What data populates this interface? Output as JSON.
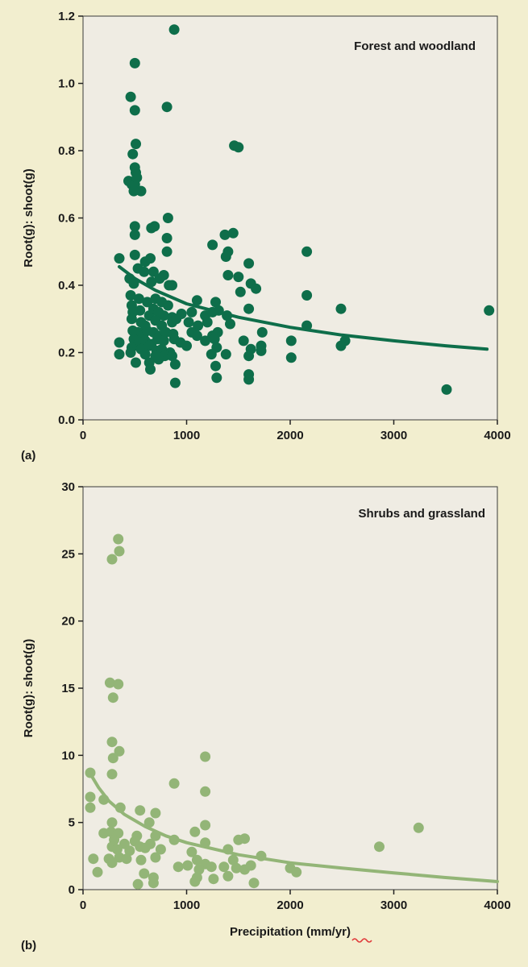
{
  "colors": {
    "page_background": "#f2eecf",
    "plot_background": "#efece3",
    "forest_color": "#0e6e4a",
    "shrub_color": "#93b577",
    "text": "#1a1a1a",
    "underline_squiggle": "#e03c3c"
  },
  "chart_data": [
    {
      "type": "scatter",
      "panel_label": "(a)",
      "title": "Forest and woodland",
      "xlabel": "",
      "ylabel": "Root(g): shoot(g)",
      "xlim": [
        0,
        4000
      ],
      "ylim": [
        0,
        1.2
      ],
      "xticks": [
        "0",
        "1000",
        "2000",
        "3000",
        "4000"
      ],
      "xtick_values": [
        0,
        1000,
        2000,
        3000,
        4000
      ],
      "yticks": [
        "0.0",
        "0.2",
        "0.4",
        "0.6",
        "0.8",
        "1.0",
        "1.2"
      ],
      "ytick_values": [
        0,
        0.2,
        0.4,
        0.6,
        0.8,
        1.0,
        1.2
      ],
      "grid": false,
      "legend": "none",
      "trend_curve": {
        "x": [
          350,
          500,
          700,
          1000,
          1500,
          2000,
          2500,
          3000,
          3500,
          3900
        ],
        "y": [
          0.455,
          0.42,
          0.385,
          0.345,
          0.305,
          0.275,
          0.252,
          0.235,
          0.22,
          0.21
        ]
      },
      "points": [
        [
          880,
          1.16
        ],
        [
          500,
          1.06
        ],
        [
          460,
          0.96
        ],
        [
          500,
          0.92
        ],
        [
          810,
          0.93
        ],
        [
          1460,
          0.815
        ],
        [
          1500,
          0.81
        ],
        [
          480,
          0.79
        ],
        [
          510,
          0.82
        ],
        [
          500,
          0.75
        ],
        [
          510,
          0.735
        ],
        [
          440,
          0.71
        ],
        [
          470,
          0.7
        ],
        [
          500,
          0.7
        ],
        [
          520,
          0.72
        ],
        [
          560,
          0.68
        ],
        [
          490,
          0.68
        ],
        [
          820,
          0.6
        ],
        [
          500,
          0.575
        ],
        [
          660,
          0.57
        ],
        [
          690,
          0.575
        ],
        [
          500,
          0.55
        ],
        [
          810,
          0.54
        ],
        [
          1250,
          0.52
        ],
        [
          1370,
          0.55
        ],
        [
          1450,
          0.555
        ],
        [
          2160,
          0.5
        ],
        [
          350,
          0.48
        ],
        [
          500,
          0.49
        ],
        [
          600,
          0.47
        ],
        [
          650,
          0.48
        ],
        [
          810,
          0.5
        ],
        [
          1400,
          0.5
        ],
        [
          1380,
          0.485
        ],
        [
          530,
          0.45
        ],
        [
          590,
          0.44
        ],
        [
          680,
          0.44
        ],
        [
          780,
          0.43
        ],
        [
          860,
          0.4
        ],
        [
          1600,
          0.465
        ],
        [
          450,
          0.42
        ],
        [
          490,
          0.405
        ],
        [
          660,
          0.41
        ],
        [
          740,
          0.42
        ],
        [
          830,
          0.4
        ],
        [
          1400,
          0.43
        ],
        [
          1500,
          0.425
        ],
        [
          1620,
          0.405
        ],
        [
          1670,
          0.39
        ],
        [
          460,
          0.37
        ],
        [
          540,
          0.36
        ],
        [
          620,
          0.35
        ],
        [
          700,
          0.36
        ],
        [
          760,
          0.35
        ],
        [
          820,
          0.34
        ],
        [
          1100,
          0.355
        ],
        [
          1280,
          0.35
        ],
        [
          1520,
          0.38
        ],
        [
          2160,
          0.37
        ],
        [
          470,
          0.34
        ],
        [
          480,
          0.32
        ],
        [
          550,
          0.325
        ],
        [
          640,
          0.31
        ],
        [
          680,
          0.33
        ],
        [
          730,
          0.32
        ],
        [
          780,
          0.31
        ],
        [
          860,
          0.305
        ],
        [
          950,
          0.315
        ],
        [
          1050,
          0.32
        ],
        [
          1180,
          0.31
        ],
        [
          1250,
          0.32
        ],
        [
          1310,
          0.325
        ],
        [
          1390,
          0.31
        ],
        [
          1600,
          0.33
        ],
        [
          2490,
          0.33
        ],
        [
          3920,
          0.325
        ],
        [
          470,
          0.3
        ],
        [
          560,
          0.29
        ],
        [
          600,
          0.28
        ],
        [
          700,
          0.295
        ],
        [
          760,
          0.28
        ],
        [
          860,
          0.29
        ],
        [
          900,
          0.3
        ],
        [
          1020,
          0.29
        ],
        [
          1110,
          0.28
        ],
        [
          1200,
          0.29
        ],
        [
          1420,
          0.285
        ],
        [
          2160,
          0.28
        ],
        [
          480,
          0.265
        ],
        [
          530,
          0.26
        ],
        [
          580,
          0.25
        ],
        [
          620,
          0.265
        ],
        [
          680,
          0.26
        ],
        [
          740,
          0.25
        ],
        [
          800,
          0.26
        ],
        [
          870,
          0.255
        ],
        [
          1050,
          0.26
        ],
        [
          1100,
          0.25
        ],
        [
          1250,
          0.25
        ],
        [
          1300,
          0.26
        ],
        [
          1730,
          0.26
        ],
        [
          490,
          0.24
        ],
        [
          540,
          0.23
        ],
        [
          600,
          0.235
        ],
        [
          660,
          0.225
        ],
        [
          720,
          0.24
        ],
        [
          780,
          0.235
        ],
        [
          880,
          0.24
        ],
        [
          940,
          0.23
        ],
        [
          1180,
          0.235
        ],
        [
          1270,
          0.24
        ],
        [
          1550,
          0.235
        ],
        [
          2010,
          0.235
        ],
        [
          2530,
          0.235
        ],
        [
          350,
          0.23
        ],
        [
          470,
          0.215
        ],
        [
          560,
          0.21
        ],
        [
          640,
          0.22
        ],
        [
          710,
          0.205
        ],
        [
          760,
          0.21
        ],
        [
          840,
          0.2
        ],
        [
          1000,
          0.22
        ],
        [
          1290,
          0.215
        ],
        [
          1620,
          0.21
        ],
        [
          1720,
          0.22
        ],
        [
          2490,
          0.22
        ],
        [
          350,
          0.195
        ],
        [
          460,
          0.2
        ],
        [
          600,
          0.195
        ],
        [
          700,
          0.19
        ],
        [
          790,
          0.19
        ],
        [
          860,
          0.19
        ],
        [
          1240,
          0.195
        ],
        [
          1380,
          0.195
        ],
        [
          1600,
          0.19
        ],
        [
          1720,
          0.205
        ],
        [
          2010,
          0.185
        ],
        [
          510,
          0.17
        ],
        [
          640,
          0.17
        ],
        [
          730,
          0.18
        ],
        [
          890,
          0.165
        ],
        [
          1280,
          0.16
        ],
        [
          650,
          0.15
        ],
        [
          1600,
          0.135
        ],
        [
          1290,
          0.125
        ],
        [
          1600,
          0.12
        ],
        [
          890,
          0.11
        ],
        [
          3510,
          0.09
        ]
      ]
    },
    {
      "type": "scatter",
      "panel_label": "(b)",
      "title": "Shrubs and grassland",
      "xlabel": "Precipitation (mm/yr)",
      "ylabel": "Root(g): shoot(g)",
      "xlim": [
        0,
        4000
      ],
      "ylim": [
        0,
        30
      ],
      "xticks": [
        "0",
        "1000",
        "2000",
        "3000",
        "4000"
      ],
      "xtick_values": [
        0,
        1000,
        2000,
        3000,
        4000
      ],
      "yticks": [
        "0",
        "5",
        "10",
        "15",
        "20",
        "25",
        "30"
      ],
      "ytick_values": [
        0,
        5,
        10,
        15,
        20,
        25,
        30
      ],
      "grid": false,
      "legend": "none",
      "trend_curve": {
        "x": [
          80,
          150,
          250,
          400,
          600,
          800,
          1000,
          1500,
          2000,
          2500,
          3000,
          3500,
          4000
        ],
        "y": [
          8.5,
          7.6,
          6.6,
          5.6,
          4.7,
          4.0,
          3.5,
          2.6,
          2.0,
          1.6,
          1.25,
          0.9,
          0.6
        ]
      },
      "points": [
        [
          340,
          26.1
        ],
        [
          350,
          25.2
        ],
        [
          280,
          24.6
        ],
        [
          260,
          15.4
        ],
        [
          340,
          15.3
        ],
        [
          290,
          14.3
        ],
        [
          280,
          11.0
        ],
        [
          350,
          10.3
        ],
        [
          290,
          9.8
        ],
        [
          1180,
          9.9
        ],
        [
          70,
          8.7
        ],
        [
          280,
          8.6
        ],
        [
          880,
          7.9
        ],
        [
          1180,
          7.3
        ],
        [
          70,
          6.9
        ],
        [
          200,
          6.7
        ],
        [
          70,
          6.1
        ],
        [
          360,
          6.1
        ],
        [
          550,
          5.9
        ],
        [
          700,
          5.7
        ],
        [
          280,
          5.0
        ],
        [
          640,
          5.0
        ],
        [
          1180,
          4.8
        ],
        [
          3240,
          4.6
        ],
        [
          200,
          4.2
        ],
        [
          270,
          4.3
        ],
        [
          340,
          4.2
        ],
        [
          520,
          4.0
        ],
        [
          700,
          4.0
        ],
        [
          1080,
          4.3
        ],
        [
          300,
          3.7
        ],
        [
          400,
          3.4
        ],
        [
          500,
          3.6
        ],
        [
          650,
          3.4
        ],
        [
          880,
          3.7
        ],
        [
          1180,
          3.5
        ],
        [
          1500,
          3.7
        ],
        [
          1560,
          3.8
        ],
        [
          280,
          3.2
        ],
        [
          330,
          3.0
        ],
        [
          450,
          2.9
        ],
        [
          550,
          3.2
        ],
        [
          600,
          3.1
        ],
        [
          750,
          3.0
        ],
        [
          1050,
          2.8
        ],
        [
          1400,
          3.0
        ],
        [
          1720,
          2.5
        ],
        [
          2860,
          3.2
        ],
        [
          100,
          2.3
        ],
        [
          250,
          2.3
        ],
        [
          350,
          2.4
        ],
        [
          420,
          2.3
        ],
        [
          560,
          2.2
        ],
        [
          700,
          2.4
        ],
        [
          1100,
          2.2
        ],
        [
          1450,
          2.2
        ],
        [
          2000,
          1.6
        ],
        [
          1180,
          1.9
        ],
        [
          2060,
          1.3
        ],
        [
          140,
          1.3
        ],
        [
          280,
          2.0
        ],
        [
          590,
          1.2
        ],
        [
          920,
          1.7
        ],
        [
          1010,
          1.8
        ],
        [
          1120,
          1.5
        ],
        [
          1240,
          1.7
        ],
        [
          1360,
          1.7
        ],
        [
          1480,
          1.6
        ],
        [
          1560,
          1.5
        ],
        [
          1620,
          1.8
        ],
        [
          680,
          0.9
        ],
        [
          1100,
          0.9
        ],
        [
          1260,
          0.8
        ],
        [
          1400,
          1.0
        ],
        [
          1650,
          0.5
        ],
        [
          530,
          0.4
        ],
        [
          680,
          0.5
        ],
        [
          1080,
          0.6
        ]
      ]
    }
  ]
}
